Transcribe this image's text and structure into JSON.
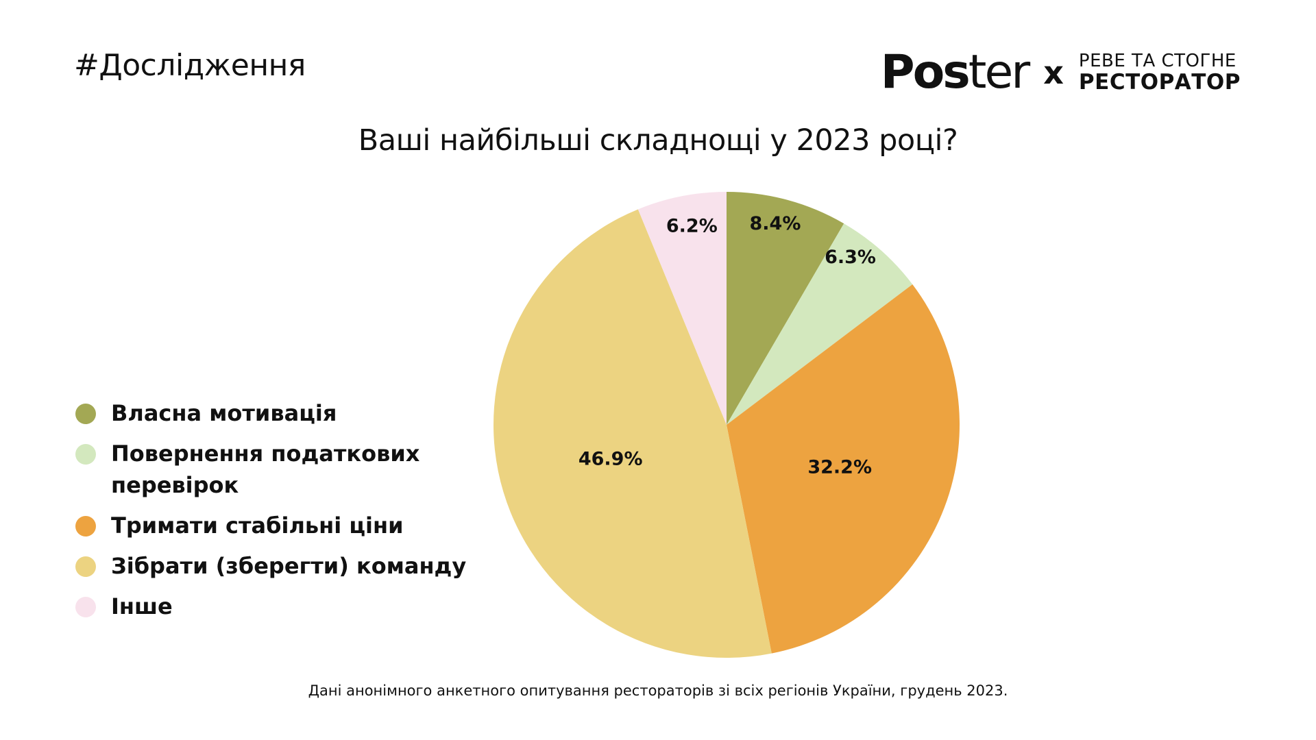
{
  "header": {
    "hashtag": "#Дослідження",
    "brand": {
      "poster_bold": "Pos",
      "poster_light": "ter",
      "separator": "x",
      "partner_line1": "РЕВЕ ТА СТОГНЕ",
      "partner_line2": "РЕСТОРАТОР"
    }
  },
  "chart_data": {
    "type": "pie",
    "title": "Ваші найбільші складнощі у 2023 році?",
    "value_format": "percent",
    "slices": [
      {
        "label": "Власна мотивація",
        "value": 8.4,
        "display": "8.4%",
        "color": "#A3A854"
      },
      {
        "label": "Повернення податкових перевірок",
        "value": 6.3,
        "display": "6.3%",
        "color": "#D3E8BE"
      },
      {
        "label": "Тримати стабільні ціни",
        "value": 32.2,
        "display": "32.2%",
        "color": "#EDA340"
      },
      {
        "label": "Зібрати (зберегти) команду",
        "value": 46.9,
        "display": "46.9%",
        "color": "#ECD381"
      },
      {
        "label": "Інше",
        "value": 6.2,
        "display": "6.2%",
        "color": "#F8E2EC"
      }
    ],
    "legend_position": "left"
  },
  "footnote": "Дані анонімного анкетного опитування рестораторів зі всіх регіонів України, грудень 2023."
}
